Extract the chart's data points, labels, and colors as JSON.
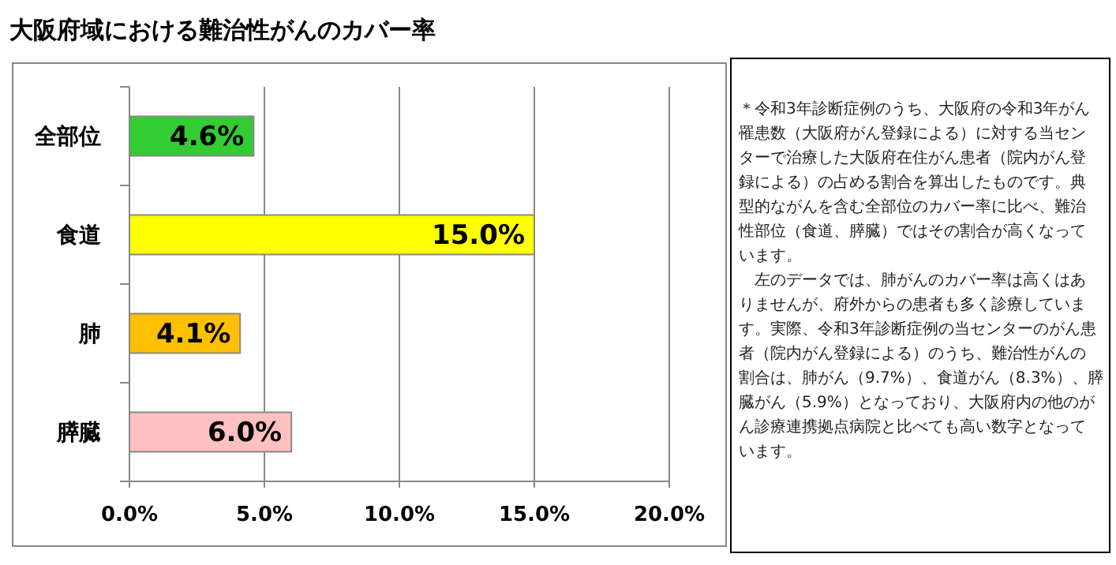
{
  "chart_data": {
    "type": "bar",
    "orientation": "horizontal",
    "title": "大阪府域における難治性がんのカバー率",
    "categories": [
      "全部位",
      "食道",
      "肺",
      "膵臓"
    ],
    "values": [
      4.6,
      15.0,
      4.1,
      6.0
    ],
    "colors": [
      "#33cc33",
      "#ffff00",
      "#ffc000",
      "#ffc0c0"
    ],
    "value_labels": [
      "4.6%",
      "15.0%",
      "4.1%",
      "6.0%"
    ],
    "xlim": [
      0,
      20
    ],
    "xticks": [
      {
        "value": 0,
        "label": "0.0%"
      },
      {
        "value": 5,
        "label": "5.0%"
      },
      {
        "value": 10,
        "label": "10.0%"
      },
      {
        "value": 15,
        "label": "15.0%"
      },
      {
        "value": 20,
        "label": "20.0%"
      }
    ],
    "grid": "x",
    "annotations": [
      "＊令和3年診断症例のうち、大阪府の令和3年がん罹患数（大阪府がん登録による）に対する当センターで治療した大阪府在住がん患者（院内がん登録による）の占める割合を算出したものです。典型的ながんを含む全部位のカバー率に比べ、難治性部位（食道、膵臓）ではその割合が高くなっています。",
      "　左のデータでは、肺がんのカバー率は高くはありませんが、府外からの患者も多く診療しています。実際、令和3年診断症例の当センターのがん患者（院内がん登録による）のうち、難治性がんの割合は、肺がん（9.7%）、食道がん（8.3%）、膵臓がん（5.9%）となっており、大阪府内の他のがん診療連携拠点病院と比べても高い数字となっています。"
    ]
  }
}
